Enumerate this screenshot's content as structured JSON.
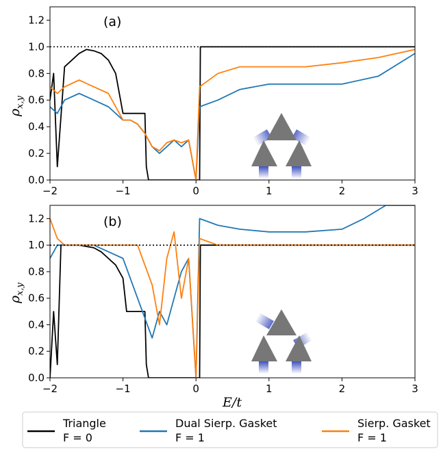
{
  "chart_data": [
    {
      "type": "line",
      "panel_label": "(a)",
      "xlabel": "",
      "ylabel": "ρx,y",
      "xlim": [
        -2,
        3
      ],
      "ylim": [
        0,
        1.3
      ],
      "xticks": [
        -2,
        -1,
        0,
        1,
        2,
        3
      ],
      "yticks": [
        0.0,
        0.2,
        0.4,
        0.6,
        0.8,
        1.0,
        1.2
      ],
      "reference_line": {
        "y": 1.0,
        "style": "dotted"
      },
      "inset_icon": "sierpinski-triangle-leads-icon",
      "series": [
        {
          "name": "Triangle F = 0",
          "color": "#000000",
          "x": [
            -2.0,
            -1.95,
            -1.9,
            -1.8,
            -1.7,
            -1.6,
            -1.5,
            -1.4,
            -1.3,
            -1.2,
            -1.1,
            -1.0,
            -0.95,
            -0.9,
            -0.8,
            -0.7,
            -0.68,
            -0.65,
            -0.5,
            -0.2,
            0.0,
            0.02,
            0.05,
            0.06,
            3.0
          ],
          "y": [
            0.6,
            0.8,
            0.1,
            0.85,
            0.9,
            0.95,
            0.98,
            0.97,
            0.95,
            0.9,
            0.8,
            0.5,
            0.5,
            0.5,
            0.5,
            0.5,
            0.1,
            0.0,
            0.0,
            0.0,
            0.0,
            0.0,
            0.0,
            1.0,
            1.0
          ]
        },
        {
          "name": "Dual Sierp. Gasket F = 1",
          "color": "#1f77b4",
          "x": [
            -2.0,
            -1.9,
            -1.8,
            -1.6,
            -1.4,
            -1.2,
            -1.0,
            -0.9,
            -0.8,
            -0.7,
            -0.6,
            -0.5,
            -0.4,
            -0.3,
            -0.2,
            -0.1,
            0.0,
            0.05,
            0.3,
            0.6,
            1.0,
            1.5,
            2.0,
            2.5,
            3.0
          ],
          "y": [
            0.55,
            0.5,
            0.6,
            0.65,
            0.6,
            0.55,
            0.45,
            0.45,
            0.42,
            0.35,
            0.25,
            0.2,
            0.25,
            0.3,
            0.25,
            0.3,
            0.0,
            0.55,
            0.6,
            0.68,
            0.72,
            0.72,
            0.72,
            0.78,
            0.95
          ]
        },
        {
          "name": "Sierp. Gasket F = 1",
          "color": "#ff7f0e",
          "x": [
            -2.0,
            -1.9,
            -1.8,
            -1.6,
            -1.4,
            -1.2,
            -1.0,
            -0.9,
            -0.8,
            -0.7,
            -0.6,
            -0.5,
            -0.4,
            -0.3,
            -0.2,
            -0.1,
            0.0,
            0.05,
            0.3,
            0.6,
            1.0,
            1.5,
            2.0,
            2.5,
            3.0
          ],
          "y": [
            0.7,
            0.65,
            0.7,
            0.75,
            0.7,
            0.65,
            0.45,
            0.45,
            0.42,
            0.35,
            0.25,
            0.22,
            0.28,
            0.3,
            0.28,
            0.3,
            0.0,
            0.7,
            0.8,
            0.85,
            0.85,
            0.85,
            0.88,
            0.92,
            0.98
          ]
        }
      ]
    },
    {
      "type": "line",
      "panel_label": "(b)",
      "xlabel": "E/t",
      "ylabel": "ρx,y",
      "xlim": [
        -2,
        3
      ],
      "ylim": [
        0,
        1.3
      ],
      "xticks": [
        -2,
        -1,
        0,
        1,
        2,
        3
      ],
      "yticks": [
        0.0,
        0.2,
        0.4,
        0.6,
        0.8,
        1.0,
        1.2
      ],
      "reference_line": {
        "y": 1.0,
        "style": "dotted"
      },
      "inset_icon": "dual-sierpinski-leads-icon",
      "series": [
        {
          "name": "Triangle F = 0",
          "color": "#000000",
          "x": [
            -2.0,
            -1.95,
            -1.9,
            -1.85,
            -1.8,
            -1.7,
            -1.6,
            -1.5,
            -1.4,
            -1.3,
            -1.2,
            -1.1,
            -1.0,
            -0.95,
            -0.9,
            -0.8,
            -0.7,
            -0.68,
            -0.65,
            -0.5,
            0.0,
            0.05,
            0.06,
            3.0
          ],
          "y": [
            0.0,
            0.5,
            0.1,
            1.0,
            1.0,
            1.0,
            1.0,
            0.99,
            0.98,
            0.95,
            0.9,
            0.85,
            0.75,
            0.5,
            0.5,
            0.5,
            0.5,
            0.1,
            0.0,
            0.0,
            0.0,
            0.0,
            1.0,
            1.0
          ]
        },
        {
          "name": "Dual Sierp. Gasket F = 1",
          "color": "#1f77b4",
          "x": [
            -2.0,
            -1.9,
            -1.8,
            -1.6,
            -1.4,
            -1.2,
            -1.0,
            -0.8,
            -0.6,
            -0.5,
            -0.4,
            -0.3,
            -0.2,
            -0.1,
            0.0,
            0.05,
            0.3,
            0.6,
            1.0,
            1.5,
            2.0,
            2.3,
            2.6,
            3.0
          ],
          "y": [
            0.9,
            1.0,
            1.0,
            1.0,
            1.0,
            0.95,
            0.9,
            0.6,
            0.3,
            0.5,
            0.4,
            0.6,
            0.8,
            0.9,
            0.0,
            1.2,
            1.15,
            1.12,
            1.1,
            1.1,
            1.12,
            1.2,
            1.3,
            1.3
          ]
        },
        {
          "name": "Sierp. Gasket F = 1",
          "color": "#ff7f0e",
          "x": [
            -2.0,
            -1.9,
            -1.8,
            -1.6,
            -1.4,
            -1.2,
            -1.0,
            -0.8,
            -0.6,
            -0.5,
            -0.4,
            -0.3,
            -0.2,
            -0.1,
            0.0,
            0.05,
            0.3,
            0.6,
            1.0,
            1.5,
            2.0,
            2.5,
            3.0
          ],
          "y": [
            1.2,
            1.05,
            1.0,
            1.0,
            1.0,
            1.0,
            1.0,
            1.0,
            0.7,
            0.4,
            0.9,
            1.1,
            0.6,
            0.9,
            0.0,
            1.05,
            1.0,
            1.0,
            1.0,
            1.0,
            1.0,
            1.0,
            1.0
          ]
        }
      ]
    }
  ],
  "legend": {
    "placement": "bottom",
    "entries": [
      {
        "line1": "Triangle",
        "line2": "F = 0",
        "color": "#000000"
      },
      {
        "line1": "Dual Sierp. Gasket",
        "line2": "F = 1",
        "color": "#1f77b4"
      },
      {
        "line1": "Sierp. Gasket",
        "line2": "F = 1",
        "color": "#ff7f0e"
      }
    ]
  }
}
